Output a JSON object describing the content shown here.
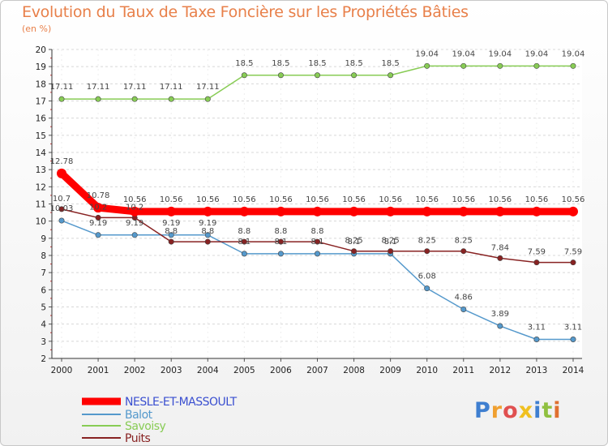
{
  "chart_data": {
    "type": "line",
    "title": "Evolution du Taux de Taxe Foncière sur les Propriétés Bâties",
    "ylabel": "(en %)",
    "categories": [
      "2000",
      "2001",
      "2002",
      "2003",
      "2004",
      "2005",
      "2006",
      "2007",
      "2008",
      "2009",
      "2010",
      "2011",
      "2012",
      "2013",
      "2014"
    ],
    "ylim": [
      2,
      20
    ],
    "yticks": [
      "2",
      "3",
      "4",
      "5",
      "6",
      "7",
      "8",
      "9",
      "10",
      "11",
      "12",
      "13",
      "14",
      "15",
      "16",
      "17",
      "18",
      "19",
      "20"
    ],
    "grid": "horizontal dashed",
    "series": [
      {
        "name": "NESLE-ET-MASSOULT",
        "color": "#ff0000",
        "values": [
          12.78,
          10.78,
          10.56,
          10.56,
          10.56,
          10.56,
          10.56,
          10.56,
          10.56,
          10.56,
          10.56,
          10.56,
          10.56,
          10.56,
          10.56
        ],
        "labels": [
          "12.78",
          "10.78",
          "10.56",
          "10.56",
          "10.56",
          "10.56",
          "10.56",
          "10.56",
          "10.56",
          "10.56",
          "10.56",
          "10.56",
          "10.56",
          "10.56",
          "10.56"
        ]
      },
      {
        "name": "Balot",
        "color": "#5599cc",
        "values": [
          10.03,
          9.19,
          9.19,
          9.19,
          9.19,
          8.1,
          8.1,
          8.1,
          8.1,
          8.1,
          6.08,
          4.86,
          3.89,
          3.11,
          3.11
        ],
        "labels": [
          "10.03",
          "9.19",
          "9.19",
          "9.19",
          "9.19",
          "8.1",
          "8.1",
          "8.1",
          "8.1",
          "8.1",
          "6.08",
          "4.86",
          "3.89",
          "3.11",
          "3.11"
        ]
      },
      {
        "name": "Savoisy",
        "color": "#88cc55",
        "values": [
          17.11,
          17.11,
          17.11,
          17.11,
          17.11,
          18.5,
          18.5,
          18.5,
          18.5,
          18.5,
          19.04,
          19.04,
          19.04,
          19.04,
          19.04
        ],
        "labels": [
          "17.11",
          "17.11",
          "17.11",
          "17.11",
          "17.11",
          "18.5",
          "18.5",
          "18.5",
          "18.5",
          "18.5",
          "19.04",
          "19.04",
          "19.04",
          "19.04",
          "19.04"
        ]
      },
      {
        "name": "Puits",
        "color": "#882222",
        "values": [
          10.7,
          10.2,
          10.2,
          8.8,
          8.8,
          8.8,
          8.8,
          8.8,
          8.25,
          8.25,
          8.25,
          8.25,
          7.84,
          7.59,
          7.59
        ],
        "labels": [
          "10.7",
          "10.2",
          "10.2",
          "8.8",
          "8.8",
          "8.8",
          "8.8",
          "8.8",
          "8.25",
          "8.25",
          "8.25",
          "8.25",
          "7.84",
          "7.59",
          "7.59"
        ]
      }
    ],
    "legend": "bottom-left"
  },
  "branding": {
    "logo_text": [
      "P",
      "r",
      "o",
      "x",
      "i",
      "t",
      "i"
    ],
    "logo_colors": [
      "#3f7fd0",
      "#f0a030",
      "#e05050",
      "#f0c020",
      "#3f7fd0",
      "#90c040",
      "#e07030"
    ]
  }
}
